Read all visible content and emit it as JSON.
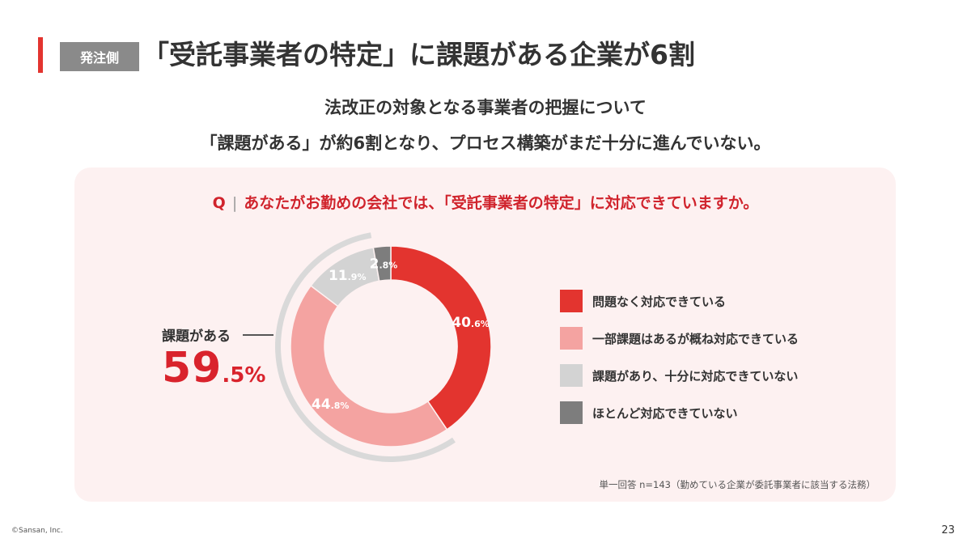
{
  "header": {
    "tag": "発注側",
    "title": "「受託事業者の特定」に課題がある企業が6割"
  },
  "subtitle": {
    "line1": "法改正の対象となる事業者の把握について",
    "line2": "「課題がある」が約6割となり、プロセス構築がまだ十分に進んでいない。"
  },
  "question": {
    "prefix": "Q",
    "separator": "|",
    "text": "あなたがお勤めの会社では、「受託事業者の特定」に対応できていますか。"
  },
  "chart_data": {
    "type": "pie",
    "donut": true,
    "series": [
      {
        "name": "問題なく対応できている",
        "value": 40.6,
        "label_main": "40",
        "label_decimal": ".6%",
        "color": "#e3342f",
        "text_color": "#ffffff"
      },
      {
        "name": "一部課題はあるが概ね対応できている",
        "value": 44.8,
        "label_main": "44",
        "label_decimal": ".8%",
        "color": "#f4a3a1",
        "text_color": "#ffffff"
      },
      {
        "name": "課題があり、十分に対応できていない",
        "value": 11.9,
        "label_main": "11",
        "label_decimal": ".9%",
        "color": "#d3d3d3",
        "text_color": "#ffffff"
      },
      {
        "name": "ほとんど対応できていない",
        "value": 2.8,
        "label_main": "2",
        "label_decimal": ".8%",
        "color": "#7d7d7d",
        "text_color": "#ffffff"
      }
    ],
    "start_angle_deg": 0,
    "clockwise": true,
    "issue_bracket": {
      "label": "課題がある",
      "value": 59.5,
      "value_main": "59",
      "value_decimal": ".5%",
      "color": "#d9232c",
      "arc_color": "#d9d9d9"
    },
    "legend_position": "right"
  },
  "note": "単一回答 n=143（勤めている企業が委託事業者に該当する法務）",
  "footer": {
    "copyright": "©Sansan, Inc.",
    "page": "23"
  }
}
